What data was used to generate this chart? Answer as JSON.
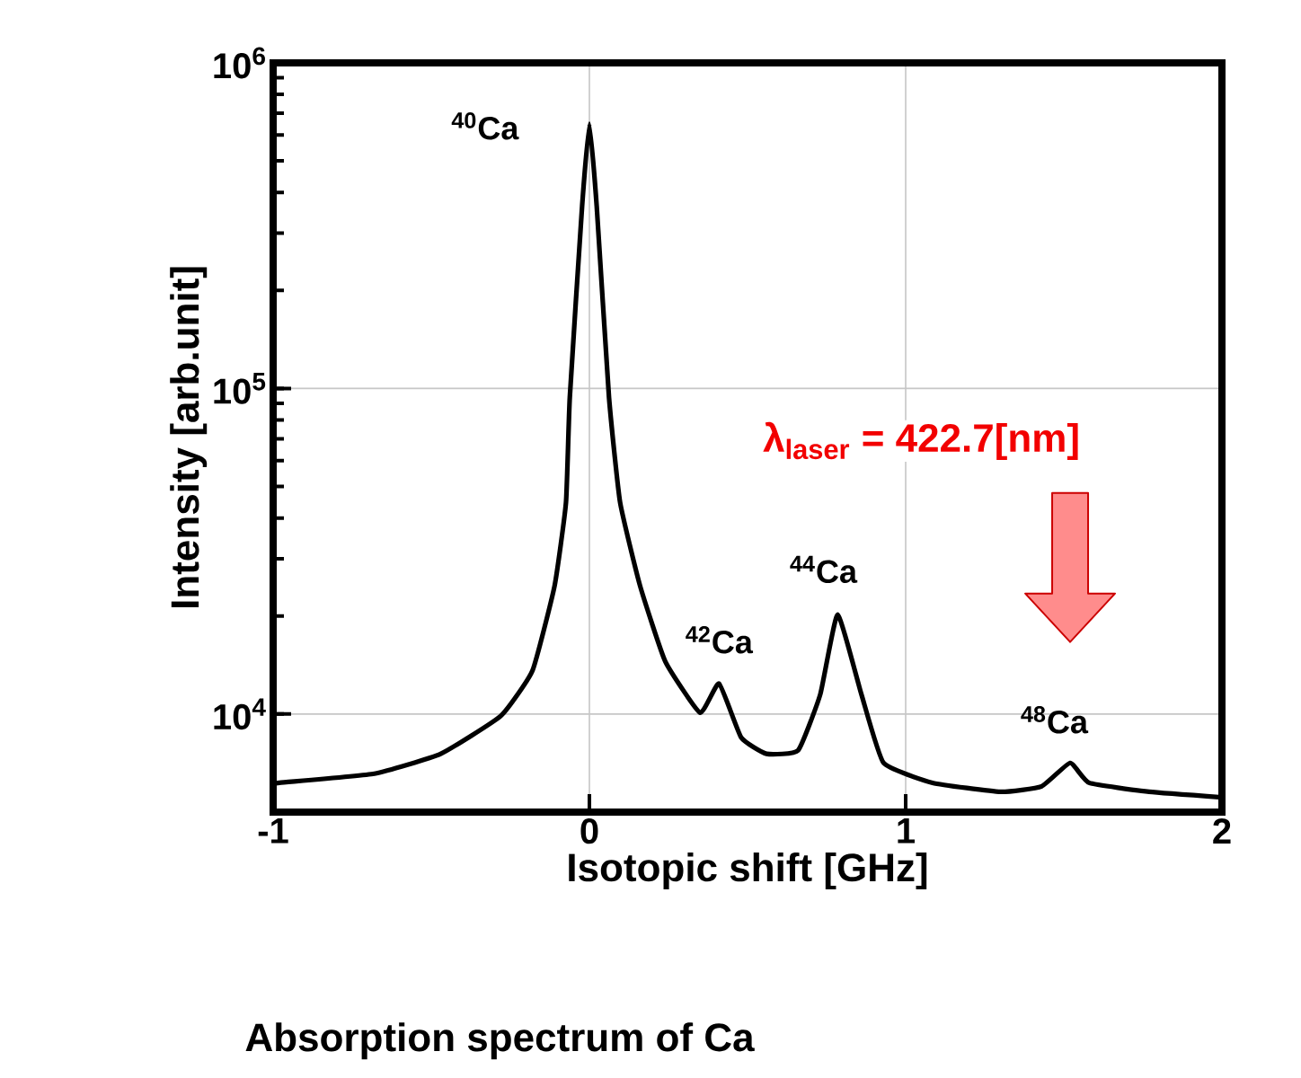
{
  "chart_data": {
    "type": "line",
    "title": "Absorption spectrum of Ca",
    "xlabel": "Isotopic shift [GHz]",
    "ylabel": "Intensity [arb.unit]",
    "log": "y",
    "grid": true,
    "xlim": [
      -1,
      2
    ],
    "ylim": [
      5000,
      1000000
    ],
    "xticks": [
      -1,
      0,
      1,
      2
    ],
    "yticks": [
      {
        "value": 10000,
        "label": "10$^{4}$"
      },
      {
        "value": 100000,
        "label": "10$^{5}$"
      },
      {
        "value": 1000000,
        "label": "10$^{6}$"
      }
    ],
    "series": [
      {
        "color": "#000000",
        "x": [
          -1.0,
          -0.98,
          -0.68,
          -0.47,
          -0.28,
          -0.18,
          -0.11,
          -0.074,
          -0.062,
          -0.023,
          0.0,
          0.023,
          0.062,
          0.097,
          0.16,
          0.24,
          0.35,
          0.41,
          0.48,
          0.56,
          0.66,
          0.73,
          0.785,
          0.86,
          0.93,
          1.085,
          1.3,
          1.43,
          1.52,
          1.58,
          1.77,
          2.0
        ],
        "values": [
          6100,
          6150,
          6560,
          7550,
          9870,
          13600,
          24800,
          44700,
          93800,
          364000,
          650000,
          364000,
          93800,
          44700,
          24800,
          14500,
          10100,
          12400,
          8470,
          7550,
          7740,
          11500,
          20200,
          11500,
          7080,
          6150,
          5770,
          6000,
          7080,
          6150,
          5770,
          5550
        ]
      }
    ],
    "annotations": [
      "$^{40}$Ca",
      "$^{42}$Ca",
      "$^{44}$Ca",
      "$^{48}$Ca",
      "λ$_{laser}$ = 422.7[nm]"
    ]
  }
}
